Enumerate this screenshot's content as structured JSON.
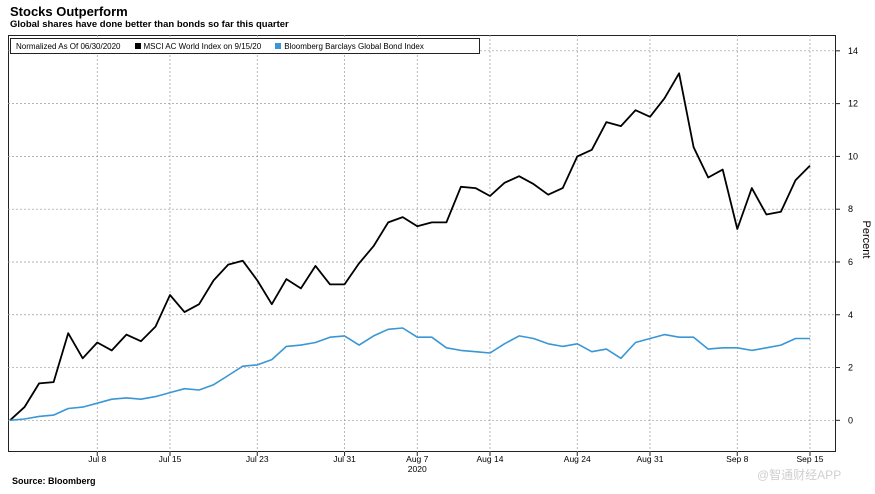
{
  "header": {
    "title": "Stocks Outperform",
    "subtitle": "Global shares have done better than bonds so far this quarter"
  },
  "legend": {
    "note": "Normalized As Of 06/30/2020",
    "items": [
      {
        "label": "MSCI AC World Index on 9/15/20",
        "color": "#000000"
      },
      {
        "label": "Bloomberg Barclays Global Bond Index",
        "color": "#3a97d4"
      }
    ]
  },
  "footer": {
    "source": "Source: Bloomberg",
    "watermark": "@智通财经APP"
  },
  "chart_data": {
    "type": "line",
    "title": "Stocks Outperform",
    "subtitle": "Global shares have done better than bonds so far this quarter",
    "ylabel": "Percent",
    "xlabel": "2020",
    "ylim": [
      -1.2,
      14.6
    ],
    "yticks": [
      0,
      2,
      4,
      6,
      8,
      10,
      12,
      14
    ],
    "y_axis_side": "right",
    "x_range": [
      0,
      55
    ],
    "x_ticks": [
      {
        "label": "Jul 8",
        "x": 6
      },
      {
        "label": "Jul 15",
        "x": 11
      },
      {
        "label": "Jul 23",
        "x": 17
      },
      {
        "label": "Jul 31",
        "x": 23
      },
      {
        "label": "Aug 7",
        "x": 28
      },
      {
        "label": "Aug 14",
        "x": 33
      },
      {
        "label": "Aug 24",
        "x": 39
      },
      {
        "label": "Aug 31",
        "x": 44
      },
      {
        "label": "Sep 8",
        "x": 50
      },
      {
        "label": "Sep 15",
        "x": 55
      }
    ],
    "x_year_label": {
      "label": "2020",
      "x": 28
    },
    "series": [
      {
        "name": "MSCI AC World Index on 9/15/20",
        "color": "#000000",
        "values": [
          0.0,
          0.5,
          1.4,
          1.45,
          3.3,
          2.35,
          2.95,
          2.65,
          3.25,
          3.0,
          3.55,
          4.75,
          4.1,
          4.4,
          5.3,
          5.9,
          6.05,
          5.3,
          4.4,
          5.35,
          5.0,
          5.85,
          5.15,
          5.15,
          5.95,
          6.6,
          7.5,
          7.7,
          7.35,
          7.5,
          7.5,
          8.85,
          8.8,
          8.5,
          9.0,
          9.25,
          8.95,
          8.55,
          8.8,
          10.0,
          10.25,
          11.3,
          11.15,
          11.75,
          11.5,
          12.2,
          13.15,
          10.35,
          9.2,
          9.5,
          7.25,
          8.8,
          7.8,
          7.9,
          9.1,
          9.65
        ]
      },
      {
        "name": "Bloomberg Barclays Global Bond Index",
        "color": "#3a97d4",
        "values": [
          0.0,
          0.05,
          0.15,
          0.2,
          0.45,
          0.5,
          0.65,
          0.8,
          0.85,
          0.8,
          0.9,
          1.05,
          1.2,
          1.15,
          1.35,
          1.7,
          2.05,
          2.1,
          2.3,
          2.8,
          2.85,
          2.95,
          3.15,
          3.2,
          2.85,
          3.2,
          3.45,
          3.5,
          3.15,
          3.15,
          2.75,
          2.65,
          2.6,
          2.55,
          2.9,
          3.2,
          3.1,
          2.9,
          2.8,
          2.9,
          2.6,
          2.7,
          2.35,
          2.95,
          3.1,
          3.25,
          3.15,
          3.15,
          2.7,
          2.75,
          2.75,
          2.65,
          2.75,
          2.85,
          3.1,
          3.1
        ]
      }
    ]
  }
}
